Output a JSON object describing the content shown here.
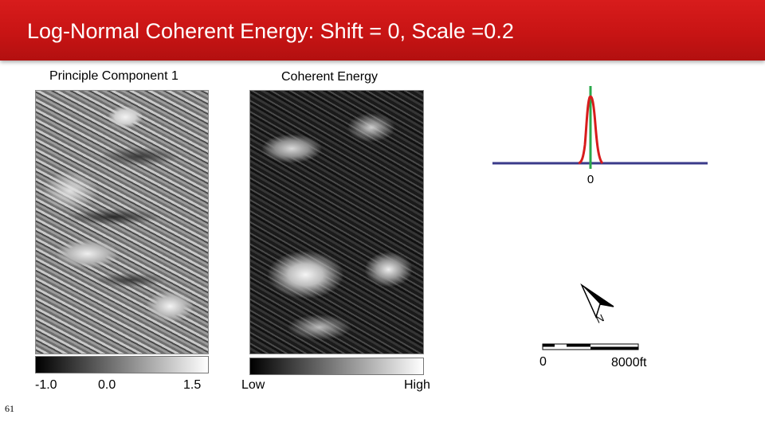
{
  "slide": {
    "title": "Log-Normal Coherent Energy: Shift = 0, Scale =0.2",
    "number": "61",
    "accent_color": "#c81414"
  },
  "panels": {
    "pc1": {
      "label": "Principle Component 1",
      "colorbar_ticks": [
        "-1.0",
        "0.0",
        "1.5"
      ]
    },
    "coherent_energy": {
      "label": "Coherent Energy",
      "colorbar_ticks": [
        "Low",
        "High"
      ]
    }
  },
  "distribution": {
    "center_label": "0",
    "baseline_color": "#3a3a8a",
    "curve_color": "#d81c1c",
    "marker_color": "#2aa84a"
  },
  "north_arrow": {
    "letter": "N",
    "icon": "north-arrow-icon"
  },
  "scale_bar": {
    "start_label": "0",
    "end_label": "8000ft"
  }
}
